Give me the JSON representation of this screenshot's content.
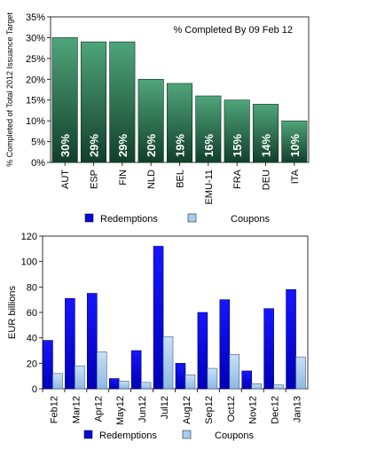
{
  "chart_data": [
    {
      "type": "bar",
      "title": "% Completed By 09 Feb 12",
      "ylabel": "% Completed of Total 2012 Issuance Target",
      "ylim": [
        0,
        35
      ],
      "yticks": [
        "0%",
        "5%",
        "10%",
        "15%",
        "20%",
        "25%",
        "30%",
        "35%"
      ],
      "categories": [
        "AUT",
        "ESP",
        "FIN",
        "NLD",
        "BEL",
        "EMU-11",
        "FRA",
        "DEU",
        "ITA"
      ],
      "values": [
        30,
        29,
        29,
        20,
        19,
        16,
        15,
        14,
        10
      ],
      "data_labels": [
        "30%",
        "29%",
        "29%",
        "20%",
        "19%",
        "16%",
        "15%",
        "14%",
        "10%"
      ],
      "legend": {
        "position": "bottom",
        "items": [
          "Redemptions",
          "Coupons"
        ]
      },
      "colors": {
        "bar_top": "#4fa57a",
        "bar_bottom": "#123f2b"
      }
    },
    {
      "type": "bar",
      "ylabel": "EUR billions",
      "ylim": [
        0,
        120
      ],
      "yticks": [
        "0",
        "20",
        "40",
        "60",
        "80",
        "100",
        "120"
      ],
      "categories": [
        "Feb12",
        "Mar12",
        "Apr12",
        "May12",
        "Jun12",
        "Jul12",
        "Aug12",
        "Sep12",
        "Oct12",
        "Nov12",
        "Dec12",
        "Jan13"
      ],
      "series": [
        {
          "name": "Redemptions",
          "values": [
            38,
            71,
            75,
            8,
            30,
            112,
            20,
            60,
            70,
            14,
            63,
            78
          ],
          "color": "#0a0ad8"
        },
        {
          "name": "Coupons",
          "values": [
            12,
            18,
            29,
            6,
            5,
            41,
            11,
            16,
            27,
            4,
            3,
            25
          ],
          "color": "#a9cdf0"
        }
      ],
      "legend": {
        "position": "bottom",
        "items": [
          "Redemptions",
          "Coupons"
        ]
      }
    }
  ]
}
